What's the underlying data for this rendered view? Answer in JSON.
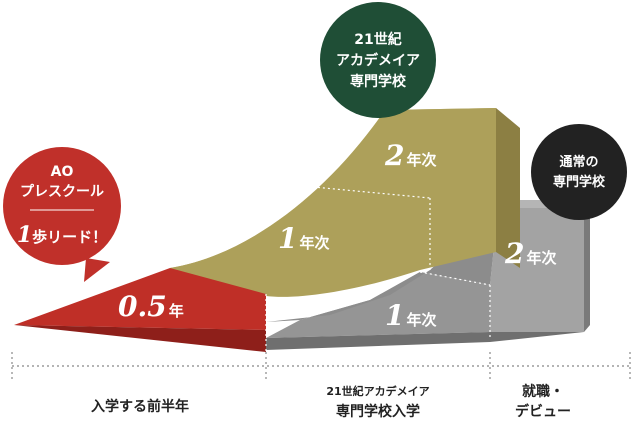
{
  "badges": {
    "ao": {
      "line1": "AO",
      "line2": "プレスクール",
      "highlight_num": "1",
      "highlight_text": "歩リード！",
      "color": "#c0302a"
    },
    "academy": {
      "line1": "21世紀",
      "line2": "アカデメイア",
      "line3": "専門学校",
      "color": "#1f4e36"
    },
    "normal": {
      "line1": "通常の",
      "line2": "専門学校",
      "color": "#222222"
    }
  },
  "stages": {
    "ao_half": {
      "num": "0.5",
      "unit": "年",
      "color": "#bf2f27"
    },
    "academy_year1": {
      "num": "1",
      "unit": "年次",
      "color": "#b0a057"
    },
    "academy_year2": {
      "num": "2",
      "unit": "年次",
      "color": "#b0a057"
    },
    "normal_year1": {
      "num": "1",
      "unit": "年次",
      "color": "#9a9a9a"
    },
    "normal_year2": {
      "num": "2",
      "unit": "年次",
      "color": "#9a9a9a"
    }
  },
  "timeline": {
    "period1": "入学する前半年",
    "period2_line1": "21世紀アカデメイア",
    "period2_line2": "専門学校入学",
    "period3_line1": "就職・",
    "period3_line2": "デビュー"
  }
}
